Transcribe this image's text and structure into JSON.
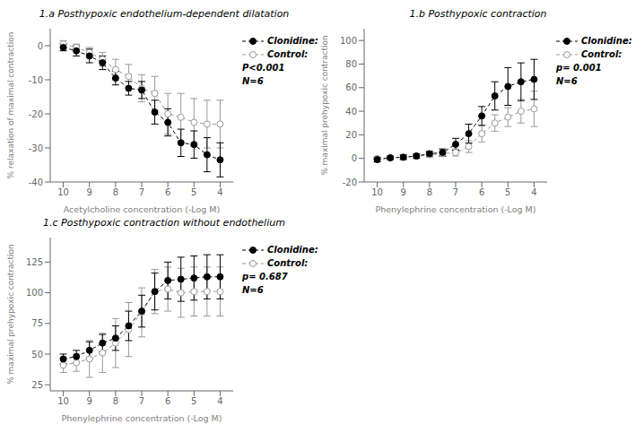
{
  "chart_data": [
    {
      "type": "line",
      "title": "1.a Posthypoxic endothelium-dependent dilatation",
      "xlabel": "Acetylcholine concentration (-Log M)",
      "ylabel": "% relaxation of maximal contraction",
      "x": [
        10,
        9.5,
        9,
        8.5,
        8,
        7.5,
        7,
        6.5,
        6,
        5.5,
        5,
        4.5,
        4
      ],
      "series": [
        {
          "name": "Clonidine:",
          "color": "#000000",
          "marker": "circle",
          "line_style": "dashed",
          "values": [
            -0.5,
            -1.5,
            -3.0,
            -5.0,
            -9.5,
            -12.5,
            -13.0,
            -19.5,
            -22.5,
            -28.5,
            -29.0,
            -32.0,
            -33.5
          ],
          "error": [
            1.0,
            1.5,
            2.0,
            2.0,
            2.0,
            2.0,
            2.5,
            3.5,
            4.0,
            4.0,
            4.0,
            5.0,
            5.0
          ]
        },
        {
          "name": "Control:",
          "color": "#999999",
          "marker": "open_circle",
          "line_style": "dashed",
          "values": [
            0.5,
            -0.5,
            -2.0,
            -4.0,
            -7.0,
            -9.0,
            -12.5,
            -14.0,
            -20.0,
            -21.0,
            -22.5,
            -23.0,
            -23.0
          ],
          "error": [
            1.0,
            1.0,
            1.5,
            2.0,
            3.0,
            3.5,
            4.0,
            5.0,
            6.0,
            7.0,
            7.0,
            7.0,
            7.0
          ]
        }
      ],
      "xlim": [
        10.5,
        3.5
      ],
      "xticks": [
        10,
        9,
        8,
        7,
        6,
        5,
        4
      ],
      "ylim": [
        -40,
        5
      ],
      "yticks": [
        0,
        -10,
        -20,
        -30,
        -40
      ],
      "annotations": [
        "P<0.001",
        "N=6"
      ],
      "legend": "right",
      "grid": false
    },
    {
      "type": "line",
      "title": "1.b Posthypoxic contraction",
      "xlabel": "Phenylephrine concentration (-Log M)",
      "ylabel": "% maximal prehypoxic contraction",
      "x": [
        10,
        9.5,
        9,
        8.5,
        8,
        7.5,
        7,
        6.5,
        6,
        5.5,
        5,
        4.5,
        4
      ],
      "series": [
        {
          "name": "Clonidine:",
          "color": "#000000",
          "marker": "circle",
          "line_style": "dashed",
          "values": [
            -1.0,
            0.5,
            1.0,
            2.0,
            4.0,
            5.0,
            12.0,
            21.0,
            36.0,
            53.0,
            61.0,
            65.0,
            67.0
          ],
          "error": [
            2.0,
            1.5,
            2.0,
            2.0,
            2.0,
            3.0,
            5.0,
            8.0,
            8.0,
            12.0,
            16.0,
            16.0,
            17.0
          ]
        },
        {
          "name": "Control:",
          "color": "#999999",
          "marker": "open_circle",
          "line_style": "dashed",
          "values": [
            0.0,
            0.5,
            1.0,
            2.0,
            3.0,
            4.0,
            5.0,
            10.0,
            21.0,
            30.0,
            35.0,
            40.0,
            42.0
          ],
          "error": [
            1.0,
            1.0,
            1.5,
            1.5,
            2.0,
            2.0,
            3.0,
            5.0,
            7.0,
            7.0,
            8.0,
            10.0,
            15.0
          ]
        }
      ],
      "xlim": [
        10.5,
        3.5
      ],
      "xticks": [
        10,
        9,
        8,
        7,
        6,
        5,
        4
      ],
      "ylim": [
        -20,
        110
      ],
      "yticks": [
        -20,
        0,
        20,
        40,
        60,
        80,
        100
      ],
      "annotations": [
        "p= 0.001",
        "N=6"
      ],
      "legend": "right",
      "grid": false
    },
    {
      "type": "line",
      "title": "1.c Posthypoxic contraction without endothelium",
      "xlabel": "Phenylephrine concentration (-Log M)",
      "ylabel": "% maximal prehypoxic contraction",
      "x": [
        10,
        9.5,
        9,
        8.5,
        8,
        7.5,
        7,
        6.5,
        6,
        5.5,
        5,
        4.5,
        4
      ],
      "series": [
        {
          "name": "Clonidine:",
          "color": "#000000",
          "marker": "circle",
          "line_style": "dashed",
          "values": [
            46.0,
            48.0,
            53.0,
            59.0,
            63.0,
            73.0,
            85.0,
            101.0,
            110.0,
            111.0,
            112.0,
            113.0,
            113.0
          ],
          "error": [
            4.0,
            5.0,
            7.0,
            7.0,
            10.0,
            12.0,
            13.0,
            15.0,
            15.0,
            18.0,
            18.0,
            18.0,
            18.0
          ]
        },
        {
          "name": "Control:",
          "color": "#999999",
          "marker": "open_circle",
          "line_style": "dashed",
          "values": [
            41.0,
            43.0,
            46.0,
            51.0,
            59.0,
            70.0,
            84.0,
            101.0,
            103.0,
            100.0,
            101.0,
            101.0,
            101.0
          ],
          "error": [
            6.0,
            7.0,
            15.0,
            16.0,
            20.0,
            22.0,
            20.0,
            18.0,
            18.0,
            20.0,
            20.0,
            20.0,
            20.0
          ]
        }
      ],
      "xlim": [
        10.5,
        3.5
      ],
      "xticks": [
        10,
        9,
        8,
        7,
        6,
        5,
        4
      ],
      "ylim": [
        20,
        145
      ],
      "yticks": [
        25,
        50,
        75,
        100,
        125
      ],
      "annotations": [
        "p= 0.687",
        "N=6"
      ],
      "legend": "right",
      "grid": false
    }
  ]
}
